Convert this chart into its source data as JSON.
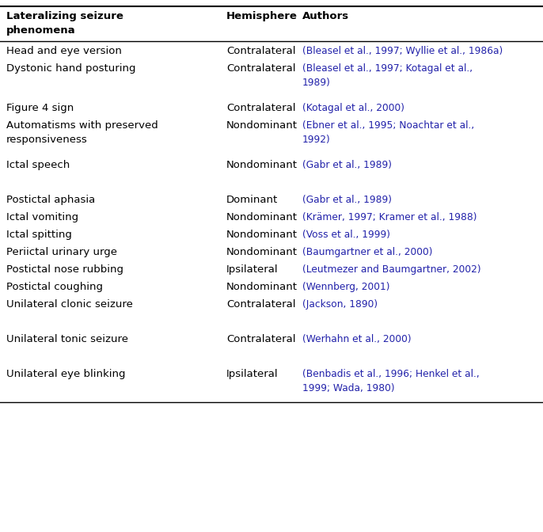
{
  "col1_header_line1": "Lateralizing seizure",
  "col1_header_line2": "phenomena",
  "col2_header": "Hemisphere",
  "col3_header": "Authors",
  "rows": [
    {
      "col1": "Head and eye version",
      "col2": "Contralateral",
      "col3": "(Bleasel et al., 1997; Wyllie et al., 1986a)",
      "extra_before": 0,
      "extra_after": 0
    },
    {
      "col1": "Dystonic hand posturing",
      "col2": "Contralateral",
      "col3": "(Bleasel et al., 1997; Kotagal et al.,\n1989)",
      "extra_before": 0,
      "extra_after": 14
    },
    {
      "col1": "Figure 4 sign",
      "col2": "Contralateral",
      "col3": "(Kotagal et al., 2000)",
      "extra_before": 0,
      "extra_after": 0
    },
    {
      "col1": "Automatisms with preserved\nresponsiveness",
      "col2": "Nondominant",
      "col3": "(Ebner et al., 1995; Noachtar et al.,\n1992)",
      "extra_before": 0,
      "extra_after": 14
    },
    {
      "col1": "Ictal speech",
      "col2": "Nondominant",
      "col3": "(Gabr et al., 1989)",
      "extra_before": 0,
      "extra_after": 22
    },
    {
      "col1": "Postictal aphasia",
      "col2": "Dominant",
      "col3": "(Gabr et al., 1989)",
      "extra_before": 0,
      "extra_after": 0
    },
    {
      "col1": "Ictal vomiting",
      "col2": "Nondominant",
      "col3": "(Krämer, 1997; Kramer et al., 1988)",
      "extra_before": 0,
      "extra_after": 0
    },
    {
      "col1": "Ictal spitting",
      "col2": "Nondominant",
      "col3": "(Voss et al., 1999)",
      "extra_before": 0,
      "extra_after": 0
    },
    {
      "col1": "Periictal urinary urge",
      "col2": "Nondominant",
      "col3": "(Baumgartner et al., 2000)",
      "extra_before": 0,
      "extra_after": 0
    },
    {
      "col1": "Postictal nose rubbing",
      "col2": "Ipsilateral",
      "col3": "(Leutmezer and Baumgartner, 2002)",
      "extra_before": 0,
      "extra_after": 0
    },
    {
      "col1": "Postictal coughing",
      "col2": "Nondominant",
      "col3": "(Wennberg, 2001)",
      "extra_before": 0,
      "extra_after": 0
    },
    {
      "col1": "Unilateral clonic seizure",
      "col2": "Contralateral",
      "col3": "(Jackson, 1890)",
      "extra_before": 0,
      "extra_after": 22
    },
    {
      "col1": "Unilateral tonic seizure",
      "col2": "Contralateral",
      "col3": "(Werhahn et al., 2000)",
      "extra_before": 0,
      "extra_after": 22
    },
    {
      "col1": "Unilateral eye blinking",
      "col2": "Ipsilateral",
      "col3": "(Benbadis et al., 1996; Henkel et al.,\n1999; Wada, 1980)",
      "extra_before": 0,
      "extra_after": 0
    }
  ],
  "header_color": "#000000",
  "ref_color": "#2222aa",
  "body_color": "#000000",
  "bg_color": "#ffffff",
  "header_fontsize": 9.5,
  "body_fontsize": 9.5,
  "ref_fontsize": 8.8
}
